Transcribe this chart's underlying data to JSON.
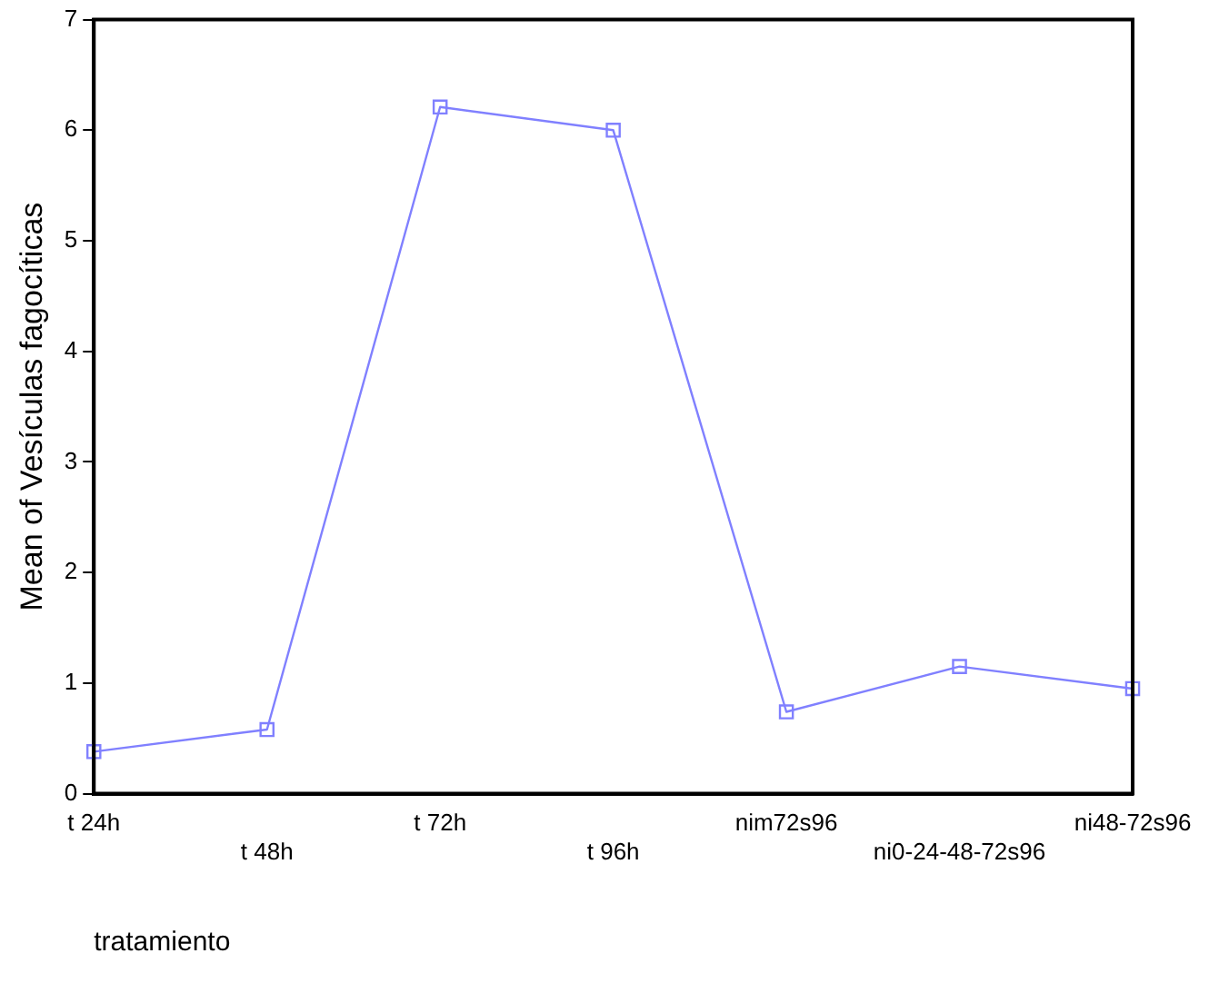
{
  "chart_data": {
    "type": "line",
    "xlabel": "tratamiento",
    "ylabel": "Mean of Vesículas fagocíticas",
    "categories": [
      "t 24h",
      "t 48h",
      "t 72h",
      "t 96h",
      "nim72s96",
      "ni0-24-48-72s96",
      "ni48-72s96"
    ],
    "series": [
      {
        "color": "#8080ff",
        "values": [
          0.38,
          0.58,
          6.21,
          6.0,
          0.74,
          1.15,
          0.95
        ]
      }
    ],
    "ylim": [
      0,
      7
    ],
    "yticks": [
      0,
      1,
      2,
      3,
      4,
      5,
      6,
      7
    ],
    "grid": false,
    "legend": false,
    "marker": "square",
    "line_style": "solid"
  }
}
